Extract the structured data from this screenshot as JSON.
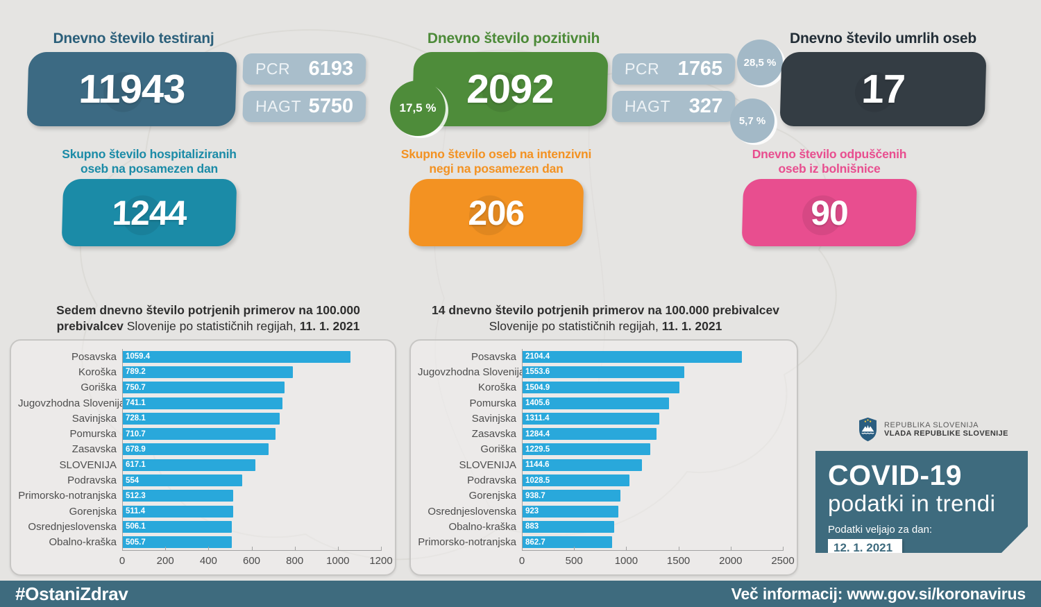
{
  "colors": {
    "page_bg": "#e5e4e2",
    "slate": "#3c6a83",
    "slate_title": "#2b5f7a",
    "pill": "#a9becb",
    "circle_gray": "#a3b9c7",
    "green": "#4e8c3a",
    "green_title": "#4c8a38",
    "dark": "#343d44",
    "dark_title": "#222d36",
    "teal": "#1b8ba7",
    "orange": "#f39222",
    "pink": "#e84e8f",
    "bar_blue": "#29a8db",
    "band_teal": "#3e6b7e",
    "text_dark": "#2e2e2e"
  },
  "top_cards": {
    "testing": {
      "title": "Dnevno število testiranj",
      "value": "11943",
      "pills": [
        {
          "label": "PCR",
          "value": "6193"
        },
        {
          "label": "HAGT",
          "value": "5750"
        }
      ]
    },
    "positive": {
      "title": "Dnevno število pozitivnih",
      "value": "2092",
      "positivity_rate": "17,5 %",
      "pills": [
        {
          "label": "PCR",
          "value": "1765",
          "rate": "28,5 %"
        },
        {
          "label": "HAGT",
          "value": "327",
          "rate": "5,7 %"
        }
      ]
    },
    "deaths": {
      "title": "Dnevno število umrlih oseb",
      "value": "17"
    }
  },
  "mid_cards": {
    "hospitalized": {
      "title_line1": "Skupno število hospitaliziranih",
      "title_line2": "oseb na posamezen dan",
      "value": "1244"
    },
    "icu": {
      "title_line1": "Skupno število oseb na intenzivni",
      "title_line2": "negi na posamezen dan",
      "value": "206"
    },
    "discharged": {
      "title_line1": "Dnevno število odpuščenih",
      "title_line2": "oseb iz bolnišnice",
      "value": "90"
    }
  },
  "chart_data": [
    {
      "type": "bar",
      "orientation": "horizontal",
      "title_bold": "Sedem dnevno število potrjenih primerov na 100.000 prebivalcev",
      "title_regular": " Slovenije po statističnih regijah, ",
      "title_date": "11. 1. 2021",
      "categories": [
        "Posavska",
        "Koroška",
        "Goriška",
        "Jugovzhodna Slovenija",
        "Savinjska",
        "Pomurska",
        "Zasavska",
        "SLOVENIJA",
        "Podravska",
        "Primorsko-notranjska",
        "Gorenjska",
        "Osrednjeslovenska",
        "Obalno-kraška"
      ],
      "values": [
        1059.4,
        789.2,
        750.7,
        741.1,
        728.1,
        710.7,
        678.9,
        617.1,
        554,
        512.3,
        511.4,
        506.1,
        505.7
      ],
      "value_labels": [
        "1059.4",
        "789.2",
        "750.7",
        "741.1",
        "728.1",
        "710.7",
        "678.9",
        "617.1",
        "554",
        "512.3",
        "511.4",
        "506.1",
        "505.7"
      ],
      "xlim": [
        0,
        1200
      ],
      "xticks": [
        0,
        200,
        400,
        600,
        800,
        1000,
        1200
      ],
      "bar_color": "#29a8db",
      "grid": false,
      "legend": "none"
    },
    {
      "type": "bar",
      "orientation": "horizontal",
      "title_bold": "14 dnevno število potrjenih primerov na 100.000 prebivalcev",
      "title_regular": " Slovenije po statističnih regijah, ",
      "title_date": "11. 1. 2021",
      "categories": [
        "Posavska",
        "Jugovzhodna Slovenija",
        "Koroška",
        "Pomurska",
        "Savinjska",
        "Zasavska",
        "Goriška",
        "SLOVENIJA",
        "Podravska",
        "Gorenjska",
        "Osrednjeslovenska",
        "Obalno-kraška",
        "Primorsko-notranjska"
      ],
      "values": [
        2104.4,
        1553.6,
        1504.9,
        1405.6,
        1311.4,
        1284.4,
        1229.5,
        1144.6,
        1028.5,
        938.7,
        923,
        883,
        862.7
      ],
      "value_labels": [
        "2104.4",
        "1553.6",
        "1504.9",
        "1405.6",
        "1311.4",
        "1284.4",
        "1229.5",
        "1144.6",
        "1028.5",
        "938.7",
        "923",
        "883",
        "862.7"
      ],
      "xlim": [
        0,
        2500
      ],
      "xticks": [
        0,
        500,
        1000,
        1500,
        2000,
        2500
      ],
      "bar_color": "#29a8db",
      "grid": false,
      "legend": "none"
    }
  ],
  "sidebar": {
    "gov_line1": "REPUBLIKA SLOVENIJA",
    "gov_line2": "VLADA REPUBLIKE SLOVENIJE",
    "covid_title": "COVID-19",
    "covid_subtitle": "podatki in trendi",
    "date_label": "Podatki veljajo za dan:",
    "date_value": "12. 1. 2021"
  },
  "footer": {
    "hashtag": "#OstaniZdrav",
    "info": "Več informacij: www.gov.si/koronavirus"
  }
}
